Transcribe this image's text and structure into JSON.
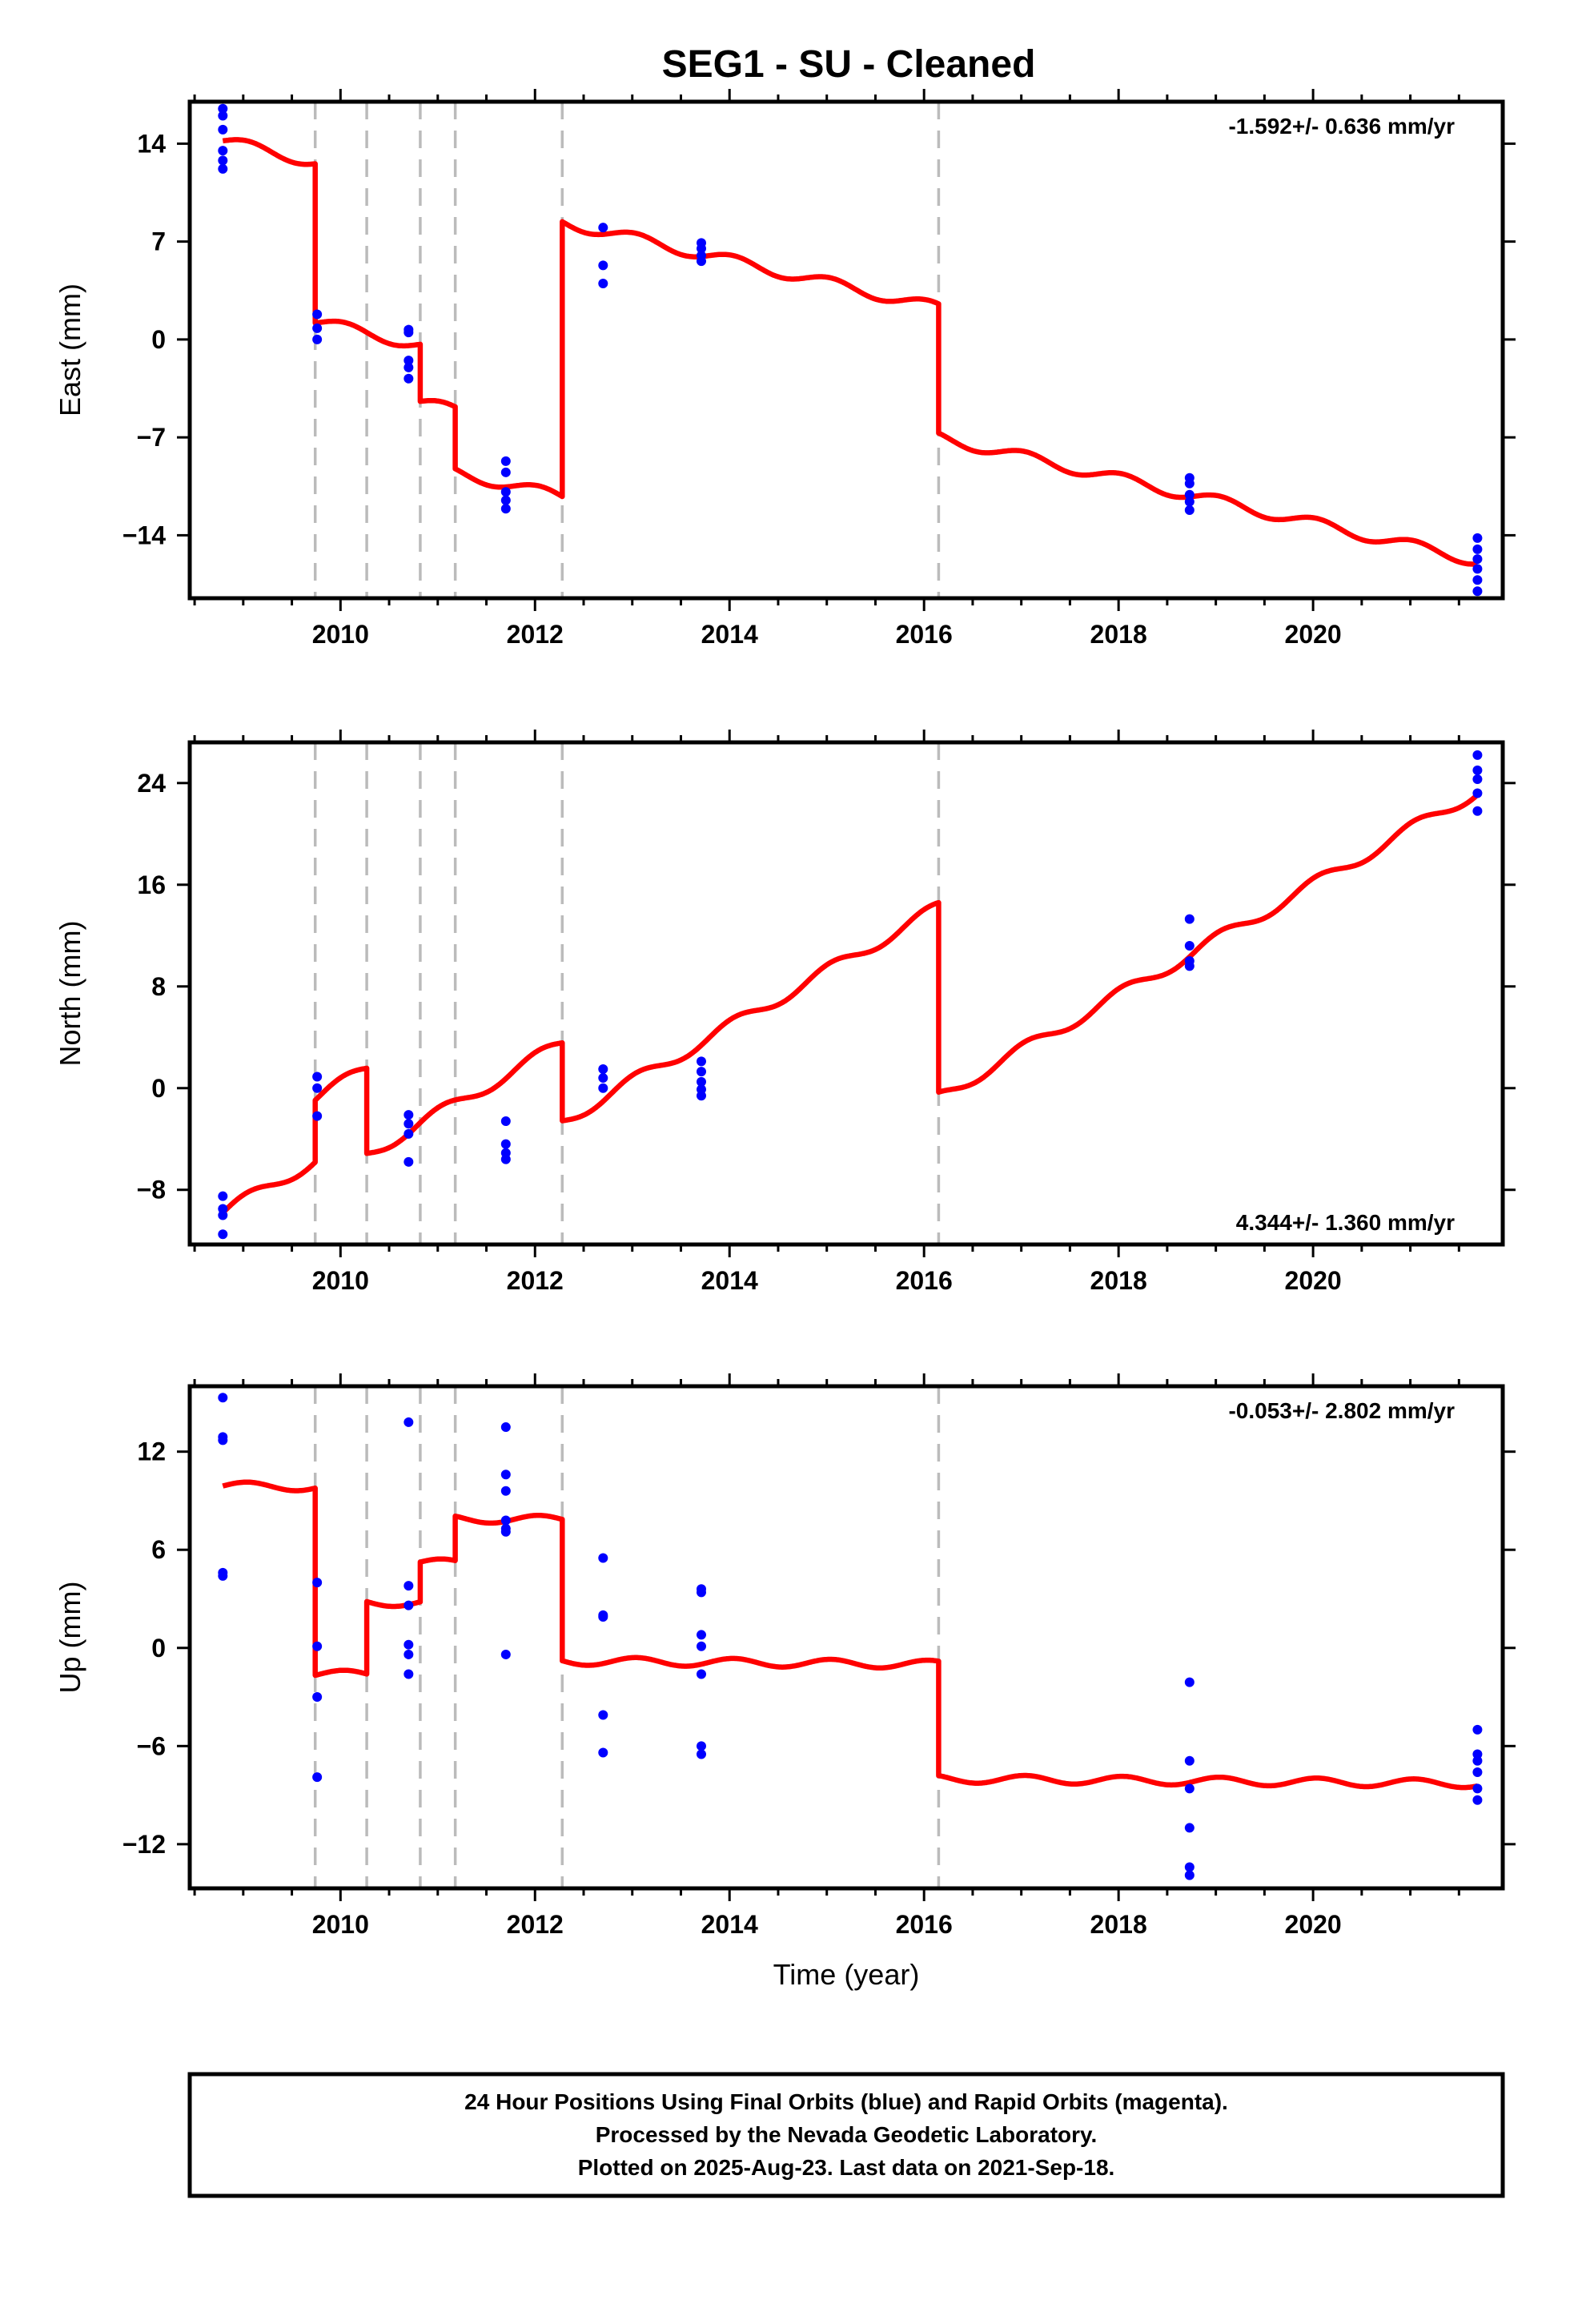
{
  "title": "SEG1  - SU - Cleaned",
  "colors": {
    "model": "#ff0000",
    "obs": "#0000ff",
    "event": "#bbbbbb"
  },
  "footer": {
    "lines": [
      "24 Hour Positions Using Final Orbits (blue) and Rapid Orbits (magenta).",
      "Processed by the Nevada Geodetic Laboratory.",
      "Plotted on 2025-Aug-23. Last data on 2021-Sep-18."
    ]
  },
  "chart_data": [
    {
      "type": "scatter",
      "ylabel": "East (mm)",
      "xlabel": "",
      "rate_text": "-1.592+/- 0.636 mm/yr",
      "rate_position": "top-right",
      "xlim": [
        2008.45,
        2021.95
      ],
      "ylim": [
        -18.5,
        17
      ],
      "xticks": [
        2010,
        2012,
        2014,
        2016,
        2018,
        2020
      ],
      "yticks": [
        14,
        7,
        0,
        -7,
        -14
      ],
      "ytick_labels": [
        "14",
        "7",
        "0",
        "−7",
        "−14"
      ],
      "event_lines": [
        2009.74,
        2010.27,
        2010.82,
        2011.18,
        2012.28,
        2016.15
      ],
      "model": {
        "rate": -1.592,
        "amp": 0.4,
        "ref_year": 2008.79,
        "segments": [
          {
            "start": 2008.79,
            "end": 2009.74,
            "start_value": 14.2
          },
          {
            "start": 2009.74,
            "end": 2010.82,
            "start_value": 1.3
          },
          {
            "start": 2010.82,
            "end": 2011.18,
            "start_value": -4.5
          },
          {
            "start": 2011.18,
            "end": 2012.28,
            "start_value": -9.5
          },
          {
            "start": 2012.28,
            "end": 2016.15,
            "start_value": 8.4
          },
          {
            "start": 2016.15,
            "end": 2021.69,
            "start_value": -7.0
          }
        ]
      },
      "observations": [
        {
          "x": 2008.79,
          "y": 16.5
        },
        {
          "x": 2008.79,
          "y": 16.0
        },
        {
          "x": 2008.79,
          "y": 15.0
        },
        {
          "x": 2008.79,
          "y": 13.5
        },
        {
          "x": 2008.79,
          "y": 12.8
        },
        {
          "x": 2008.79,
          "y": 12.2
        },
        {
          "x": 2009.76,
          "y": 1.8
        },
        {
          "x": 2009.76,
          "y": 0.8
        },
        {
          "x": 2009.76,
          "y": 0.0
        },
        {
          "x": 2010.7,
          "y": 0.7
        },
        {
          "x": 2010.7,
          "y": 0.5
        },
        {
          "x": 2010.7,
          "y": -1.5
        },
        {
          "x": 2010.7,
          "y": -2.0
        },
        {
          "x": 2010.7,
          "y": -2.8
        },
        {
          "x": 2011.7,
          "y": -8.7
        },
        {
          "x": 2011.7,
          "y": -9.5
        },
        {
          "x": 2011.7,
          "y": -10.9
        },
        {
          "x": 2011.7,
          "y": -11.5
        },
        {
          "x": 2011.7,
          "y": -12.1
        },
        {
          "x": 2012.7,
          "y": 8.0
        },
        {
          "x": 2012.7,
          "y": 5.3
        },
        {
          "x": 2012.7,
          "y": 4.0
        },
        {
          "x": 2013.71,
          "y": 6.9
        },
        {
          "x": 2013.71,
          "y": 6.5
        },
        {
          "x": 2013.71,
          "y": 6.0
        },
        {
          "x": 2013.71,
          "y": 5.6
        },
        {
          "x": 2018.73,
          "y": -9.9
        },
        {
          "x": 2018.73,
          "y": -10.3
        },
        {
          "x": 2018.73,
          "y": -11.1
        },
        {
          "x": 2018.73,
          "y": -11.6
        },
        {
          "x": 2018.73,
          "y": -12.2
        },
        {
          "x": 2021.69,
          "y": -14.2
        },
        {
          "x": 2021.69,
          "y": -15.0
        },
        {
          "x": 2021.69,
          "y": -15.7
        },
        {
          "x": 2021.69,
          "y": -16.4
        },
        {
          "x": 2021.69,
          "y": -17.2
        },
        {
          "x": 2021.69,
          "y": -18.0
        }
      ]
    },
    {
      "type": "scatter",
      "ylabel": "North (mm)",
      "xlabel": "",
      "rate_text": "4.344+/- 1.360 mm/yr",
      "rate_position": "bottom-right",
      "xlim": [
        2008.45,
        2021.95
      ],
      "ylim": [
        -12.3,
        27.2
      ],
      "xticks": [
        2010,
        2012,
        2014,
        2016,
        2018,
        2020
      ],
      "yticks": [
        24,
        16,
        8,
        0,
        -8
      ],
      "ytick_labels": [
        "24",
        "16",
        "8",
        "0",
        "−8"
      ],
      "event_lines": [
        2009.74,
        2010.27,
        2010.82,
        2011.18,
        2012.28,
        2016.15
      ],
      "model": {
        "rate": 4.344,
        "amp": 0.5,
        "ref_year": 2008.79,
        "segments": [
          {
            "start": 2008.79,
            "end": 2009.74,
            "start_value": -9.8
          },
          {
            "start": 2009.74,
            "end": 2010.27,
            "start_value": -0.8
          },
          {
            "start": 2010.27,
            "end": 2012.28,
            "start_value": -5.2
          },
          {
            "start": 2012.28,
            "end": 2016.15,
            "start_value": -2.6
          },
          {
            "start": 2016.15,
            "end": 2021.69,
            "start_value": -0.7
          }
        ]
      },
      "observations": [
        {
          "x": 2008.79,
          "y": -8.5
        },
        {
          "x": 2008.79,
          "y": -9.5
        },
        {
          "x": 2008.79,
          "y": -10.0
        },
        {
          "x": 2008.79,
          "y": -11.5
        },
        {
          "x": 2009.76,
          "y": 0.9
        },
        {
          "x": 2009.76,
          "y": 0.0
        },
        {
          "x": 2009.76,
          "y": -2.2
        },
        {
          "x": 2010.7,
          "y": -2.1
        },
        {
          "x": 2010.7,
          "y": -2.8
        },
        {
          "x": 2010.7,
          "y": -3.6
        },
        {
          "x": 2010.7,
          "y": -5.8
        },
        {
          "x": 2011.7,
          "y": -2.6
        },
        {
          "x": 2011.7,
          "y": -4.4
        },
        {
          "x": 2011.7,
          "y": -5.1
        },
        {
          "x": 2011.7,
          "y": -5.6
        },
        {
          "x": 2012.7,
          "y": 1.5
        },
        {
          "x": 2012.7,
          "y": 0.8
        },
        {
          "x": 2012.7,
          "y": 0.0
        },
        {
          "x": 2013.71,
          "y": 2.1
        },
        {
          "x": 2013.71,
          "y": 1.3
        },
        {
          "x": 2013.71,
          "y": 0.5
        },
        {
          "x": 2013.71,
          "y": -0.1
        },
        {
          "x": 2013.71,
          "y": -0.6
        },
        {
          "x": 2018.73,
          "y": 13.3
        },
        {
          "x": 2018.73,
          "y": 11.2
        },
        {
          "x": 2018.73,
          "y": 10.0
        },
        {
          "x": 2018.73,
          "y": 9.6
        },
        {
          "x": 2021.69,
          "y": 26.2
        },
        {
          "x": 2021.69,
          "y": 25.0
        },
        {
          "x": 2021.69,
          "y": 24.3
        },
        {
          "x": 2021.69,
          "y": 23.2
        },
        {
          "x": 2021.69,
          "y": 21.8
        }
      ]
    },
    {
      "type": "scatter",
      "ylabel": "Up (mm)",
      "xlabel": "Time (year)",
      "rate_text": "-0.053+/- 2.802 mm/yr",
      "rate_position": "top-right",
      "xlim": [
        2008.45,
        2021.95
      ],
      "ylim": [
        -14.7,
        16
      ],
      "xticks": [
        2010,
        2012,
        2014,
        2016,
        2018,
        2020
      ],
      "yticks": [
        12,
        6,
        0,
        -6,
        -12
      ],
      "ytick_labels": [
        "12",
        "6",
        "0",
        "−6",
        "−12"
      ],
      "event_lines": [
        2009.74,
        2010.27,
        2010.82,
        2011.18,
        2012.28,
        2016.15
      ],
      "model": {
        "rate": -0.053,
        "amp": 0.25,
        "ref_year": 2008.79,
        "segments": [
          {
            "start": 2008.79,
            "end": 2009.74,
            "start_value": 9.9
          },
          {
            "start": 2009.74,
            "end": 2010.27,
            "start_value": -1.6
          },
          {
            "start": 2010.27,
            "end": 2010.82,
            "start_value": 2.8
          },
          {
            "start": 2010.82,
            "end": 2011.18,
            "start_value": 5.2
          },
          {
            "start": 2011.18,
            "end": 2012.28,
            "start_value": 7.9
          },
          {
            "start": 2012.28,
            "end": 2016.15,
            "start_value": -0.8
          },
          {
            "start": 2016.15,
            "end": 2021.69,
            "start_value": -8.0
          }
        ]
      },
      "observations": [
        {
          "x": 2008.79,
          "y": 15.3
        },
        {
          "x": 2008.79,
          "y": 12.9
        },
        {
          "x": 2008.79,
          "y": 12.7
        },
        {
          "x": 2008.79,
          "y": 4.6
        },
        {
          "x": 2008.79,
          "y": 4.4
        },
        {
          "x": 2009.76,
          "y": 4.0
        },
        {
          "x": 2009.76,
          "y": 0.1
        },
        {
          "x": 2009.76,
          "y": -3.0
        },
        {
          "x": 2009.76,
          "y": -7.9
        },
        {
          "x": 2010.7,
          "y": 13.8
        },
        {
          "x": 2010.7,
          "y": 3.8
        },
        {
          "x": 2010.7,
          "y": 2.6
        },
        {
          "x": 2010.7,
          "y": 0.2
        },
        {
          "x": 2010.7,
          "y": -0.4
        },
        {
          "x": 2010.7,
          "y": -1.6
        },
        {
          "x": 2011.7,
          "y": 13.5
        },
        {
          "x": 2011.7,
          "y": 10.6
        },
        {
          "x": 2011.7,
          "y": 9.6
        },
        {
          "x": 2011.7,
          "y": 7.8
        },
        {
          "x": 2011.7,
          "y": 7.3
        },
        {
          "x": 2011.7,
          "y": 7.1
        },
        {
          "x": 2011.7,
          "y": -0.4
        },
        {
          "x": 2012.7,
          "y": 5.5
        },
        {
          "x": 2012.7,
          "y": 2.0
        },
        {
          "x": 2012.7,
          "y": 1.9
        },
        {
          "x": 2012.7,
          "y": -4.1
        },
        {
          "x": 2012.7,
          "y": -6.4
        },
        {
          "x": 2013.71,
          "y": 3.6
        },
        {
          "x": 2013.71,
          "y": 3.4
        },
        {
          "x": 2013.71,
          "y": 0.8
        },
        {
          "x": 2013.71,
          "y": 0.1
        },
        {
          "x": 2013.71,
          "y": -1.6
        },
        {
          "x": 2013.71,
          "y": -6.0
        },
        {
          "x": 2013.71,
          "y": -6.5
        },
        {
          "x": 2018.73,
          "y": -2.1
        },
        {
          "x": 2018.73,
          "y": -6.9
        },
        {
          "x": 2018.73,
          "y": -8.6
        },
        {
          "x": 2018.73,
          "y": -11.0
        },
        {
          "x": 2018.73,
          "y": -13.4
        },
        {
          "x": 2018.73,
          "y": -13.9
        },
        {
          "x": 2021.69,
          "y": -5.0
        },
        {
          "x": 2021.69,
          "y": -6.5
        },
        {
          "x": 2021.69,
          "y": -6.9
        },
        {
          "x": 2021.69,
          "y": -7.6
        },
        {
          "x": 2021.69,
          "y": -8.6
        },
        {
          "x": 2021.69,
          "y": -9.3
        }
      ]
    }
  ]
}
